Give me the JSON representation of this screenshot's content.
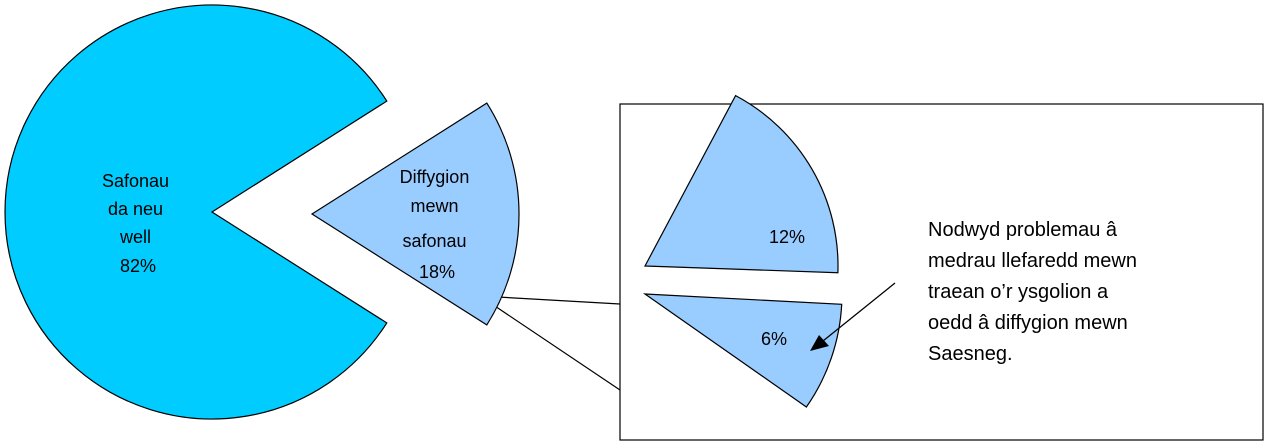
{
  "chart_data": {
    "type": "pie",
    "title": "",
    "main": {
      "slices": [
        {
          "label": "Safonau da neu well",
          "value": 82,
          "value_text": "82%",
          "color": "#00CCFF"
        },
        {
          "label": "Diffygion mewn safonau",
          "value": 18,
          "value_text": "18%",
          "color": "#99CCFF"
        }
      ]
    },
    "breakdown": {
      "of": "Diffygion mewn safonau",
      "slices": [
        {
          "label": "",
          "value": 12,
          "value_text": "12%",
          "color": "#99CCFF"
        },
        {
          "label": "",
          "value": 6,
          "value_text": "6%",
          "color": "#99CCFF"
        }
      ]
    },
    "annotation": "Nodwyd problemau â medrau llefaredd mewn traean o’r ysgolion a oedd â diffygion mewn Saesneg."
  },
  "labels": {
    "main_good": [
      "Safonau",
      "da neu",
      "well",
      "82%"
    ],
    "main_defect": [
      "Diffygion",
      "mewn",
      "safonau",
      "18%"
    ],
    "sub_a": "12%",
    "sub_b": "6%",
    "note_lines": [
      "Nodwyd problemau â",
      "medrau llefaredd mewn",
      "traean o’r ysgolion a",
      "oedd â diffygion mewn",
      "Saesneg."
    ]
  }
}
